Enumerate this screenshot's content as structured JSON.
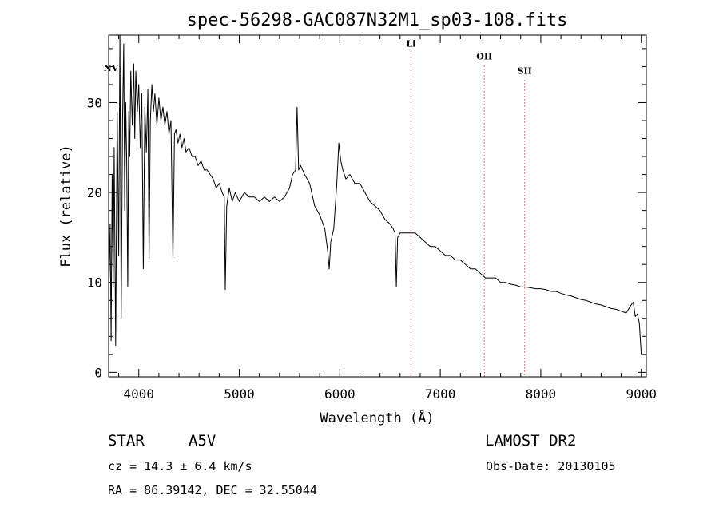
{
  "chart_data": {
    "type": "line",
    "title": "spec-56298-GAC087N32M1_sp03-108.fits",
    "xlabel": "Wavelength (Å)",
    "ylabel": "Flux (relative)",
    "xlim": [
      3700,
      9050
    ],
    "ylim": [
      -0.5,
      37.5
    ],
    "x_ticks": [
      4000,
      5000,
      6000,
      7000,
      8000,
      9000
    ],
    "y_ticks": [
      0,
      10,
      20,
      30
    ],
    "grid": false,
    "line_color": "#000000",
    "marker_color": "#c00000",
    "lines": [
      {
        "label": "NV",
        "x": 3700,
        "label_y": 33.5,
        "dotted": false
      },
      {
        "label": "Li",
        "x": 6708,
        "label_y": 36.2,
        "dotted": true
      },
      {
        "label": "OII",
        "x": 7438,
        "label_y": 34.8,
        "dotted": true
      },
      {
        "label": "SII",
        "x": 7839,
        "label_y": 33.2,
        "dotted": true
      }
    ],
    "series": [
      {
        "x": [
          3700,
          3715,
          3725,
          3735,
          3745,
          3755,
          3770,
          3785,
          3800,
          3812,
          3825,
          3838,
          3850,
          3860,
          3870,
          3880,
          3890,
          3900,
          3910,
          3920,
          3935,
          3950,
          3960,
          3970,
          3985,
          4000,
          4015,
          4030,
          4045,
          4060,
          4075,
          4090,
          4102,
          4115,
          4130,
          4145,
          4160,
          4180,
          4200,
          4220,
          4240,
          4260,
          4280,
          4300,
          4320,
          4340,
          4355,
          4370,
          4390,
          4410,
          4430,
          4450,
          4470,
          4500,
          4530,
          4560,
          4590,
          4620,
          4650,
          4680,
          4710,
          4740,
          4770,
          4800,
          4830,
          4850,
          4861,
          4875,
          4900,
          4930,
          4960,
          5000,
          5050,
          5100,
          5150,
          5200,
          5250,
          5300,
          5350,
          5400,
          5450,
          5500,
          5530,
          5560,
          5575,
          5590,
          5610,
          5650,
          5700,
          5750,
          5800,
          5850,
          5880,
          5895,
          5910,
          5940,
          5970,
          5990,
          6010,
          6030,
          6060,
          6100,
          6150,
          6200,
          6250,
          6300,
          6350,
          6400,
          6450,
          6500,
          6530,
          6550,
          6563,
          6575,
          6600,
          6650,
          6700,
          6750,
          6800,
          6850,
          6900,
          6950,
          7000,
          7050,
          7100,
          7150,
          7200,
          7250,
          7300,
          7350,
          7400,
          7450,
          7500,
          7550,
          7600,
          7650,
          7700,
          7750,
          7800,
          7850,
          7900,
          7950,
          8000,
          8050,
          8100,
          8150,
          8200,
          8250,
          8300,
          8350,
          8400,
          8450,
          8500,
          8550,
          8600,
          8650,
          8700,
          8750,
          8800,
          8850,
          8900,
          8920,
          8940,
          8960,
          8980,
          9000
        ],
        "values": [
          8.0,
          16.5,
          3.5,
          22.0,
          9.5,
          25.0,
          3.0,
          29.0,
          13.0,
          37.5,
          6.0,
          28.0,
          36.5,
          18.0,
          30.0,
          23.5,
          9.5,
          29.0,
          24.0,
          33.5,
          27.5,
          34.3,
          26.0,
          33.5,
          29.0,
          32.0,
          25.0,
          31.0,
          11.5,
          29.5,
          24.5,
          31.5,
          12.5,
          28.0,
          32.0,
          29.0,
          31.0,
          27.5,
          30.5,
          28.0,
          29.5,
          27.5,
          29.0,
          26.5,
          28.0,
          12.5,
          26.5,
          27.0,
          25.5,
          26.5,
          25.0,
          26.0,
          24.5,
          25.0,
          24.0,
          24.0,
          23.0,
          23.5,
          22.5,
          22.5,
          22.0,
          21.5,
          20.5,
          21.0,
          20.0,
          19.5,
          9.2,
          18.5,
          20.5,
          19.0,
          20.0,
          19.0,
          20.0,
          19.5,
          19.5,
          19.0,
          19.5,
          19.0,
          19.5,
          19.0,
          19.5,
          20.5,
          22.0,
          22.5,
          29.5,
          22.5,
          23.0,
          22.0,
          21.0,
          18.5,
          17.5,
          16.0,
          13.5,
          11.5,
          14.5,
          16.0,
          21.0,
          25.5,
          23.5,
          22.5,
          21.5,
          22.0,
          21.0,
          21.0,
          20.0,
          19.0,
          18.5,
          18.0,
          17.0,
          16.5,
          16.0,
          15.5,
          9.5,
          15.0,
          15.5,
          15.5,
          15.5,
          15.5,
          15.0,
          14.5,
          14.0,
          14.0,
          13.5,
          13.0,
          13.0,
          12.5,
          12.5,
          12.0,
          11.5,
          11.5,
          11.0,
          10.5,
          10.5,
          10.5,
          10.0,
          10.0,
          9.8,
          9.7,
          9.5,
          9.5,
          9.4,
          9.3,
          9.3,
          9.2,
          9.0,
          9.0,
          8.8,
          8.6,
          8.5,
          8.3,
          8.1,
          8.0,
          7.8,
          7.6,
          7.5,
          7.3,
          7.1,
          7.0,
          6.8,
          6.6,
          7.5,
          7.8,
          6.2,
          6.5,
          5.5,
          2.0
        ]
      }
    ]
  },
  "info": {
    "object_type": "STAR",
    "subclass": "A5V",
    "survey": "LAMOST DR2",
    "cz": "cz = 14.3 ± 6.4 km/s",
    "obs_date": "Obs-Date: 20130105",
    "coords": "RA =  86.39142, DEC =  32.55044"
  }
}
